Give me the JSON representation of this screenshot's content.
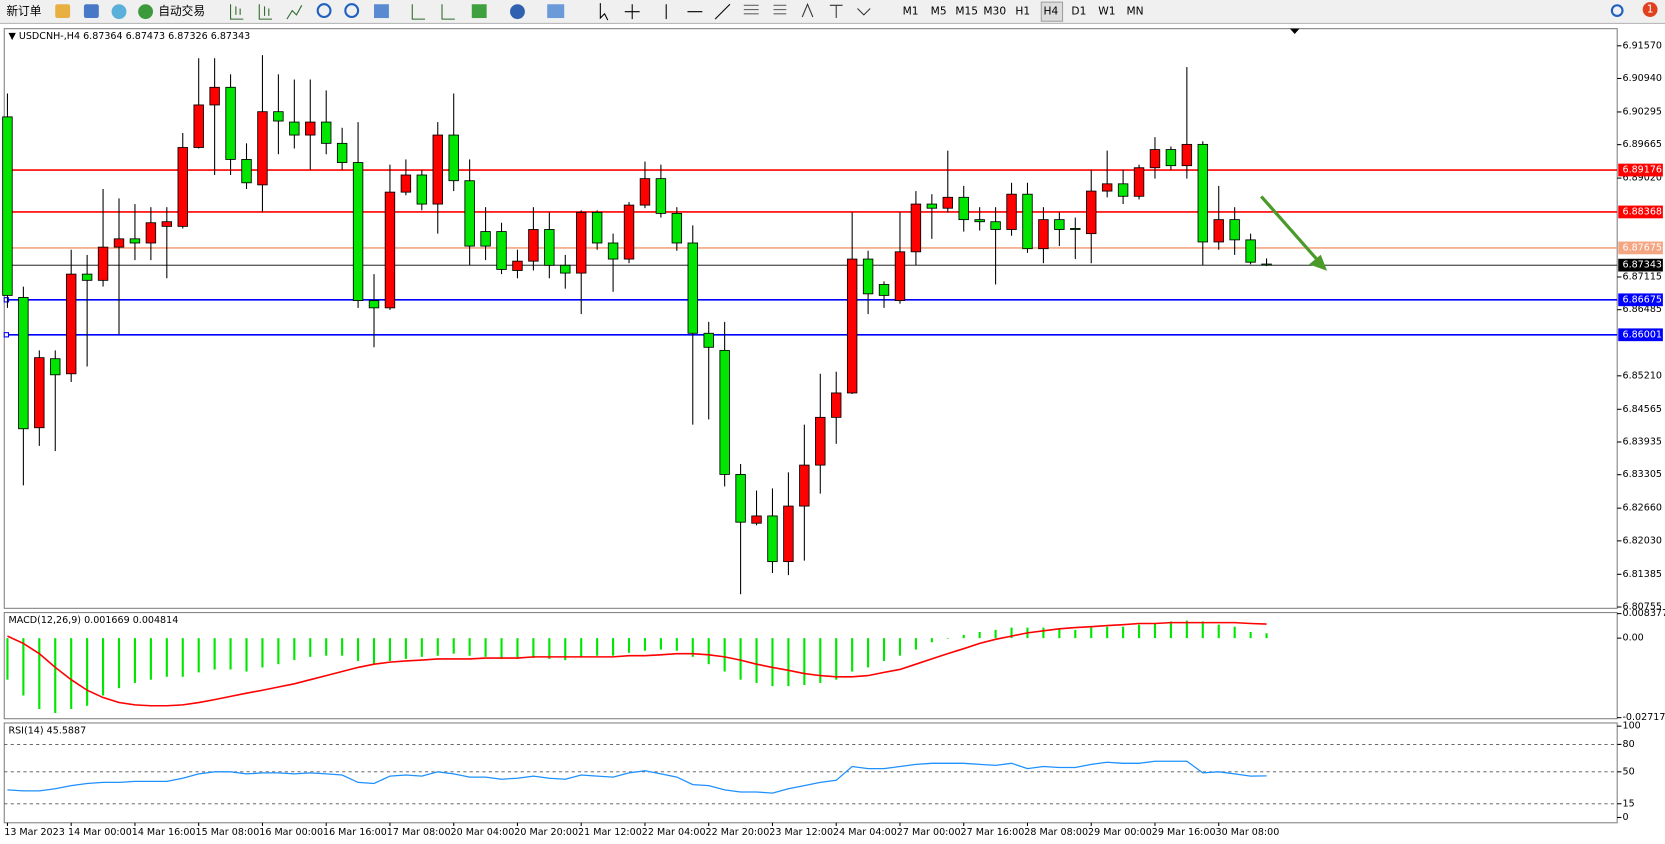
{
  "toolbar": {
    "new_order": "新订单",
    "auto_trade": "自动交易",
    "timeframes": [
      "M1",
      "M5",
      "M15",
      "M30",
      "H1",
      "H4",
      "D1",
      "W1",
      "MN"
    ],
    "notifications": 1
  },
  "chart_data": [
    {
      "type": "candlestick",
      "symbol": "USDCNH-,H4",
      "categories": [
        "13 Mar 2023",
        null,
        null,
        null,
        "14 Mar 00:00",
        null,
        null,
        null,
        "14 Mar 16:00",
        null,
        null,
        null,
        "15 Mar 08:00",
        null,
        null,
        null,
        "16 Mar 00:00",
        null,
        null,
        null,
        "16 Mar 16:00",
        null,
        null,
        null,
        "17 Mar 08:00",
        null,
        null,
        null,
        "20 Mar 04:00",
        null,
        null,
        null,
        "20 Mar 20:00",
        null,
        null,
        null,
        "21 Mar 12:00",
        null,
        null,
        null,
        "22 Mar 04:00",
        null,
        null,
        null,
        "22 Mar 20:00",
        null,
        null,
        null,
        "23 Mar 12:00",
        null,
        null,
        null,
        "24 Mar 04:00",
        null,
        null,
        null,
        "27 Mar 00:00",
        null,
        null,
        null,
        "27 Mar 16:00",
        null,
        null,
        null,
        "28 Mar 08:00",
        null,
        null,
        null,
        "29 Mar 00:00",
        null,
        null,
        null,
        "29 Mar 16:00",
        null,
        null,
        null,
        "30 Mar 08:00",
        null,
        null,
        null
      ],
      "open": [
        6.902,
        6.8672,
        6.8421,
        6.8554,
        6.8525,
        6.8717,
        6.8705,
        6.8769,
        6.8785,
        6.8777,
        6.8809,
        6.8809,
        6.8961,
        6.9043,
        6.9077,
        6.8938,
        6.8889,
        6.903,
        6.901,
        6.8985,
        6.901,
        6.8969,
        6.8932,
        6.8666,
        6.8652,
        6.8875,
        6.8908,
        6.8852,
        6.8985,
        6.8897,
        6.8799,
        6.8799,
        6.8724,
        6.8742,
        6.8803,
        6.8734,
        6.8719,
        6.8836,
        6.8777,
        6.8746,
        6.885,
        6.8901,
        6.8834,
        6.8777,
        6.8603,
        6.857,
        6.8331,
        6.8237,
        6.8251,
        6.8163,
        6.827,
        6.8349,
        6.8441,
        6.8488,
        6.8746,
        6.8697,
        6.8666,
        6.876,
        6.8852,
        6.8844,
        6.8865,
        6.8822,
        6.8818,
        6.8803,
        6.8871,
        6.8766,
        6.8822,
        6.8805,
        6.8795,
        6.8877,
        6.8891,
        6.8867,
        6.8922,
        6.8957,
        6.8926,
        6.8967,
        6.8779,
        6.8822,
        6.8783,
        6.87364
      ],
      "high": [
        6.9065,
        6.8693,
        6.857,
        6.857,
        6.8764,
        6.8754,
        6.8881,
        6.8863,
        6.8852,
        6.8846,
        6.8846,
        6.8989,
        6.9133,
        6.9133,
        6.9102,
        6.8969,
        6.9139,
        6.9102,
        6.9092,
        6.9092,
        6.9071,
        6.8999,
        6.901,
        6.8717,
        6.8928,
        6.8938,
        6.8918,
        6.901,
        6.9065,
        6.8938,
        6.8846,
        6.8816,
        6.8764,
        6.8846,
        6.8836,
        6.8754,
        6.884,
        6.884,
        6.8795,
        6.8856,
        6.8934,
        6.8928,
        6.8846,
        6.8811,
        6.8625,
        6.8625,
        6.8351,
        6.83,
        6.8304,
        6.8335,
        6.8427,
        6.8525,
        6.8529,
        6.8836,
        6.8762,
        6.8703,
        6.8836,
        6.8877,
        6.8871,
        6.8955,
        6.8887,
        6.8846,
        6.8846,
        6.8893,
        6.8893,
        6.8846,
        6.8836,
        6.8826,
        6.8918,
        6.8955,
        6.8918,
        6.8928,
        6.8981,
        6.8963,
        6.9116,
        6.8973,
        6.8887,
        6.8846,
        6.8795,
        6.87473
      ],
      "low": [
        6.8652,
        6.831,
        6.8386,
        6.8376,
        6.8509,
        6.8539,
        6.8693,
        6.8601,
        6.8744,
        6.8744,
        6.8709,
        6.8805,
        6.8959,
        6.8908,
        6.8908,
        6.8881,
        6.8836,
        6.8948,
        6.8959,
        6.8918,
        6.8948,
        6.8918,
        6.8652,
        6.8576,
        6.8648,
        6.8869,
        6.884,
        6.8795,
        6.8877,
        6.8734,
        6.8744,
        6.8717,
        6.8709,
        6.8724,
        6.8709,
        6.8689,
        6.864,
        6.8764,
        6.8683,
        6.8738,
        6.8844,
        6.8826,
        6.8762,
        6.8427,
        6.8437,
        6.8308,
        6.81,
        6.8233,
        6.8141,
        6.8137,
        6.8165,
        6.8294,
        6.839,
        6.8486,
        6.864,
        6.8652,
        6.866,
        6.8734,
        6.8785,
        6.8836,
        6.8799,
        6.8801,
        6.8697,
        6.8791,
        6.8758,
        6.8738,
        6.8771,
        6.8746,
        6.8738,
        6.8865,
        6.8852,
        6.8861,
        6.8901,
        6.8918,
        6.8901,
        6.8734,
        6.8764,
        6.8754,
        6.8736,
        6.87326
      ],
      "close": [
        6.8676,
        6.8419,
        6.8556,
        6.8523,
        6.8717,
        6.8705,
        6.8769,
        6.8785,
        6.8777,
        6.8816,
        6.8818,
        6.8961,
        6.9043,
        6.9077,
        6.8938,
        6.8893,
        6.903,
        6.9012,
        6.8985,
        6.901,
        6.8969,
        6.8932,
        6.8666,
        6.8652,
        6.8875,
        6.8908,
        6.8852,
        6.8985,
        6.8897,
        6.8771,
        6.8771,
        6.8726,
        6.8742,
        6.8803,
        6.8734,
        6.8719,
        6.8836,
        6.8777,
        6.8746,
        6.885,
        6.8901,
        6.8834,
        6.8777,
        6.8603,
        6.8576,
        6.8331,
        6.8239,
        6.8251,
        6.8163,
        6.827,
        6.8349,
        6.8441,
        6.8488,
        6.8746,
        6.8679,
        6.8676,
        6.876,
        6.8852,
        6.8844,
        6.8865,
        6.8822,
        6.8818,
        6.8803,
        6.8871,
        6.8766,
        6.8822,
        6.8803,
        6.8803,
        6.8877,
        6.8891,
        6.8867,
        6.8922,
        6.8957,
        6.8926,
        6.8967,
        6.8779,
        6.8822,
        6.8783,
        6.874,
        6.87343
      ],
      "up_color": "#ff0000",
      "down_color": "#00e600",
      "ylim": [
        6.8073,
        6.919
      ],
      "yticks": [
        {
          "value": 6.9157,
          "label": "6.91570"
        },
        {
          "value": 6.9094,
          "label": "6.90940"
        },
        6.90295,
        6.89665,
        {
          "value": 6.8902,
          "label": "6.89020"
        },
        6.87115,
        6.86485,
        {
          "value": 6.8521,
          "label": "6.85210"
        },
        6.84565,
        6.83935,
        6.83305,
        {
          "value": 6.8266,
          "label": "6.82660"
        },
        {
          "value": 6.8203,
          "label": "6.82030"
        },
        6.81385,
        6.80755
      ],
      "price_lines": [
        {
          "value": 6.89176,
          "color": "#ff0000"
        },
        {
          "value": 6.88368,
          "color": "#ff0000"
        },
        {
          "value": 6.87675,
          "color": "#f4a582"
        },
        {
          "value": 6.86675,
          "color": "#0000ff"
        },
        {
          "value": 6.86001,
          "color": "#0000ff"
        }
      ],
      "bid_line_color": "#000000"
    },
    {
      "type": "macd",
      "title": "MACD(12,26,9)",
      "values": [
        -0.0142,
        -0.0196,
        -0.0242,
        -0.0256,
        -0.0242,
        -0.0231,
        -0.0196,
        -0.0171,
        -0.0153,
        -0.0142,
        -0.0132,
        -0.0132,
        -0.0117,
        -0.0107,
        -0.0107,
        -0.0114,
        -0.01,
        -0.0089,
        -0.0075,
        -0.0064,
        -0.006,
        -0.006,
        -0.0078,
        -0.0089,
        -0.0078,
        -0.0071,
        -0.0064,
        -0.006,
        -0.0053,
        -0.006,
        -0.0064,
        -0.0071,
        -0.0071,
        -0.0068,
        -0.0071,
        -0.0075,
        -0.0064,
        -0.006,
        -0.006,
        -0.005,
        -0.0043,
        -0.0039,
        -0.0043,
        -0.0064,
        -0.0089,
        -0.0114,
        -0.0142,
        -0.0153,
        -0.0164,
        -0.0164,
        -0.016,
        -0.0153,
        -0.0142,
        -0.0114,
        -0.01,
        -0.0078,
        -0.006,
        -0.0039,
        -0.0014,
        -0.0002,
        0.0011,
        0.0021,
        0.0028,
        0.0036,
        0.0036,
        0.0036,
        0.0032,
        0.0028,
        0.0036,
        0.0039,
        0.0039,
        0.0046,
        0.005,
        0.0057,
        0.006,
        0.0057,
        0.0046,
        0.0039,
        0.0021,
        0.001669
      ],
      "color": "#00e600",
      "signal": [
        0.0007,
        -0.0018,
        -0.0053,
        -0.01,
        -0.0142,
        -0.0178,
        -0.0203,
        -0.022,
        -0.0228,
        -0.0231,
        -0.0231,
        -0.0228,
        -0.022,
        -0.021,
        -0.0199,
        -0.0188,
        -0.0178,
        -0.0167,
        -0.0156,
        -0.0142,
        -0.0128,
        -0.0114,
        -0.01,
        -0.0089,
        -0.0082,
        -0.0078,
        -0.0075,
        -0.0071,
        -0.0071,
        -0.0071,
        -0.0068,
        -0.0068,
        -0.0068,
        -0.0064,
        -0.0064,
        -0.0064,
        -0.0064,
        -0.0064,
        -0.0064,
        -0.006,
        -0.006,
        -0.0057,
        -0.0053,
        -0.0053,
        -0.0057,
        -0.0064,
        -0.0075,
        -0.0089,
        -0.01,
        -0.011,
        -0.0121,
        -0.0128,
        -0.0132,
        -0.0132,
        -0.0128,
        -0.0117,
        -0.0107,
        -0.0089,
        -0.0071,
        -0.0053,
        -0.0036,
        -0.0018,
        -0.0004,
        0.0007,
        0.0018,
        0.0025,
        0.0032,
        0.0036,
        0.0039,
        0.0043,
        0.0046,
        0.005,
        0.005,
        0.0053,
        0.0053,
        0.0053,
        0.0053,
        0.0053,
        0.005,
        0.004814
      ],
      "signal_color": "#ff0000",
      "ylim": [
        -0.027172,
        0.008377
      ],
      "yticks": [
        0.008377,
        {
          "value": 0,
          "label": "0.00"
        },
        -0.027172
      ]
    },
    {
      "type": "line",
      "title": "RSI(14)",
      "values": [
        30.2,
        29.1,
        29.1,
        31.4,
        34.9,
        37.2,
        38.4,
        38.4,
        39.5,
        39.5,
        39.5,
        43.0,
        47.7,
        50.0,
        50.0,
        47.7,
        48.8,
        48.8,
        47.7,
        48.8,
        47.7,
        46.5,
        38.4,
        37.2,
        45.3,
        46.5,
        45.3,
        50.0,
        47.7,
        44.2,
        44.2,
        41.9,
        43.0,
        45.3,
        43.0,
        41.9,
        46.5,
        45.3,
        44.2,
        48.8,
        51.2,
        47.7,
        44.2,
        36.0,
        34.9,
        30.2,
        27.9,
        27.9,
        26.7,
        31.4,
        34.9,
        38.4,
        40.7,
        55.8,
        53.5,
        53.5,
        55.8,
        58.1,
        59.3,
        59.3,
        59.3,
        58.1,
        57.0,
        59.3,
        53.5,
        55.8,
        54.7,
        54.7,
        58.1,
        60.5,
        59.3,
        59.3,
        61.6,
        61.6,
        61.6,
        48.8,
        50.0,
        47.7,
        45.3,
        45.5887
      ],
      "color": "#1e90ff",
      "ylim": [
        0,
        100
      ],
      "yticks": [
        100,
        80,
        50,
        15,
        0
      ],
      "levels": [
        80,
        50,
        15
      ]
    }
  ]
}
